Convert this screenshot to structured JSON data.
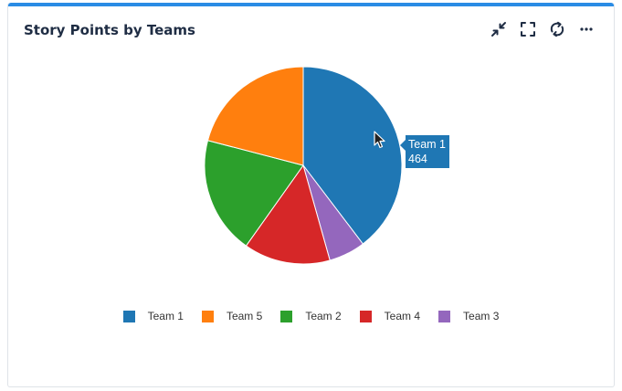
{
  "widget": {
    "title": "Story Points by Teams",
    "toolbar": [
      {
        "icon": "collapse-icon"
      },
      {
        "icon": "fullscreen-icon"
      },
      {
        "icon": "refresh-icon"
      },
      {
        "icon": "more-icon"
      }
    ]
  },
  "tooltip": {
    "team": "Team 1",
    "value": "464"
  },
  "chart_data": {
    "type": "pie",
    "title": "",
    "slices": [
      {
        "label": "Team 1",
        "value": 464,
        "color": "#1f77b4"
      },
      {
        "label": "Team 3",
        "value": 70,
        "color": "#9467bd"
      },
      {
        "label": "Team 4",
        "value": 166,
        "color": "#d62728"
      },
      {
        "label": "Team 2",
        "value": 225,
        "color": "#2ca02c"
      },
      {
        "label": "Team 5",
        "value": 245,
        "color": "#ff7f0e"
      }
    ],
    "legend": {
      "placement": "bottom",
      "order": [
        "Team 1",
        "Team 5",
        "Team 2",
        "Team 4",
        "Team 3"
      ]
    }
  }
}
